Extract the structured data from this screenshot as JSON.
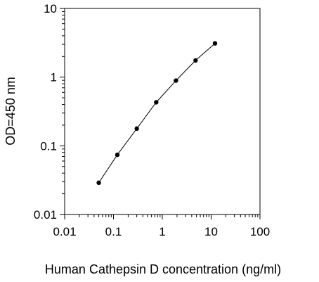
{
  "chart_data": {
    "type": "line",
    "title": "",
    "xlabel": "Human Cathepsin D concentration (ng/ml)",
    "ylabel": "OD=450 nm",
    "x_scale": "log",
    "y_scale": "log",
    "xlim": [
      0.01,
      100
    ],
    "ylim": [
      0.01,
      10
    ],
    "x_ticks": [
      "0.01",
      "0.1",
      "1",
      "10",
      "100"
    ],
    "y_ticks": [
      "0.01",
      "0.1",
      "1",
      "10"
    ],
    "grid": false,
    "legend": "none",
    "series": [
      {
        "x": [
          0.05,
          0.12,
          0.3,
          0.75,
          1.9,
          4.8,
          12
        ],
        "y": [
          0.029,
          0.074,
          0.178,
          0.43,
          0.89,
          1.75,
          3.1
        ]
      }
    ],
    "colors": {
      "line": "#000000",
      "marker": "#000000",
      "axis": "#000000"
    }
  }
}
